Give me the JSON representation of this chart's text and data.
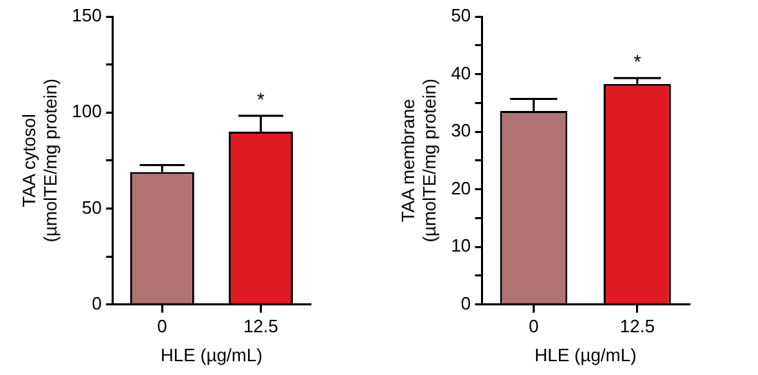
{
  "chart_data": [
    {
      "type": "bar",
      "ylabel": "TAA cytosol\n(µmolTE/mg protein)",
      "xlabel": "HLE (µg/mL)",
      "categories": [
        "0",
        "12.5"
      ],
      "values": [
        69,
        90
      ],
      "colors": [
        "#b07272",
        "#e01b24"
      ],
      "errors": [
        [
          69,
          72.6
        ],
        [
          90,
          98.3
        ]
      ],
      "ylim": [
        0,
        150
      ],
      "yticks": [
        0,
        {
          "value": 25,
          "label": null
        },
        50,
        {
          "value": 75,
          "label": null
        },
        100,
        {
          "value": 125,
          "label": null
        },
        150
      ],
      "grid": false,
      "legend": false,
      "annotations": [
        {
          "text": "*",
          "x": "12.5",
          "y": 98.3
        }
      ]
    },
    {
      "type": "bar",
      "ylabel": "TAA membrane\n(µmolTE/mg protein)",
      "xlabel": "HLE (µg/mL)",
      "categories": [
        "0",
        "12.5"
      ],
      "values": [
        33.6,
        38.3
      ],
      "colors": [
        "#b07272",
        "#e01b24"
      ],
      "errors": [
        [
          33.6,
          35.7
        ],
        [
          38.3,
          39.3
        ]
      ],
      "ylim": [
        0,
        50
      ],
      "yticks": [
        0,
        {
          "value": 5,
          "label": null
        },
        10,
        {
          "value": 15,
          "label": null
        },
        20,
        {
          "value": 25,
          "label": null
        },
        30,
        {
          "value": 35,
          "label": null
        },
        40,
        {
          "value": 45,
          "label": null
        },
        50
      ],
      "grid": false,
      "legend": false,
      "annotations": [
        {
          "text": "*",
          "x": "12.5",
          "y": 39.3
        }
      ]
    }
  ]
}
